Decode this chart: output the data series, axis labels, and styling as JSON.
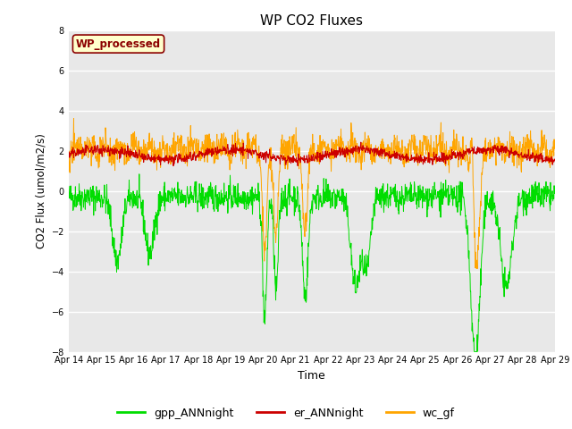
{
  "title": "WP CO2 Fluxes",
  "xlabel": "Time",
  "ylabel": "CO2 Flux (umol/m2/s)",
  "ylim": [
    -8,
    8
  ],
  "yticks": [
    -8,
    -6,
    -4,
    -2,
    0,
    2,
    4,
    6,
    8
  ],
  "n_points": 1440,
  "n_days": 15,
  "start_day": 14,
  "colors": {
    "gpp": "#00dd00",
    "er": "#cc0000",
    "wc": "#ffa500"
  },
  "line_width": 0.7,
  "legend_labels": [
    "gpp_ANNnight",
    "er_ANNnight",
    "wc_gf"
  ],
  "annotation_text": "WP_processed",
  "annotation_color": "#8b0000",
  "annotation_bg": "#ffffcc",
  "bg_color": "#e8e8e8",
  "fig_bg": "#ffffff",
  "xtick_labels": [
    "Apr 14",
    "Apr 15",
    "Apr 16",
    "Apr 17",
    "Apr 18",
    "Apr 19",
    "Apr 20",
    "Apr 21",
    "Apr 22",
    "Apr 23",
    "Apr 24",
    "Apr 25",
    "Apr 26",
    "Apr 27",
    "Apr 28",
    "Apr 29"
  ]
}
